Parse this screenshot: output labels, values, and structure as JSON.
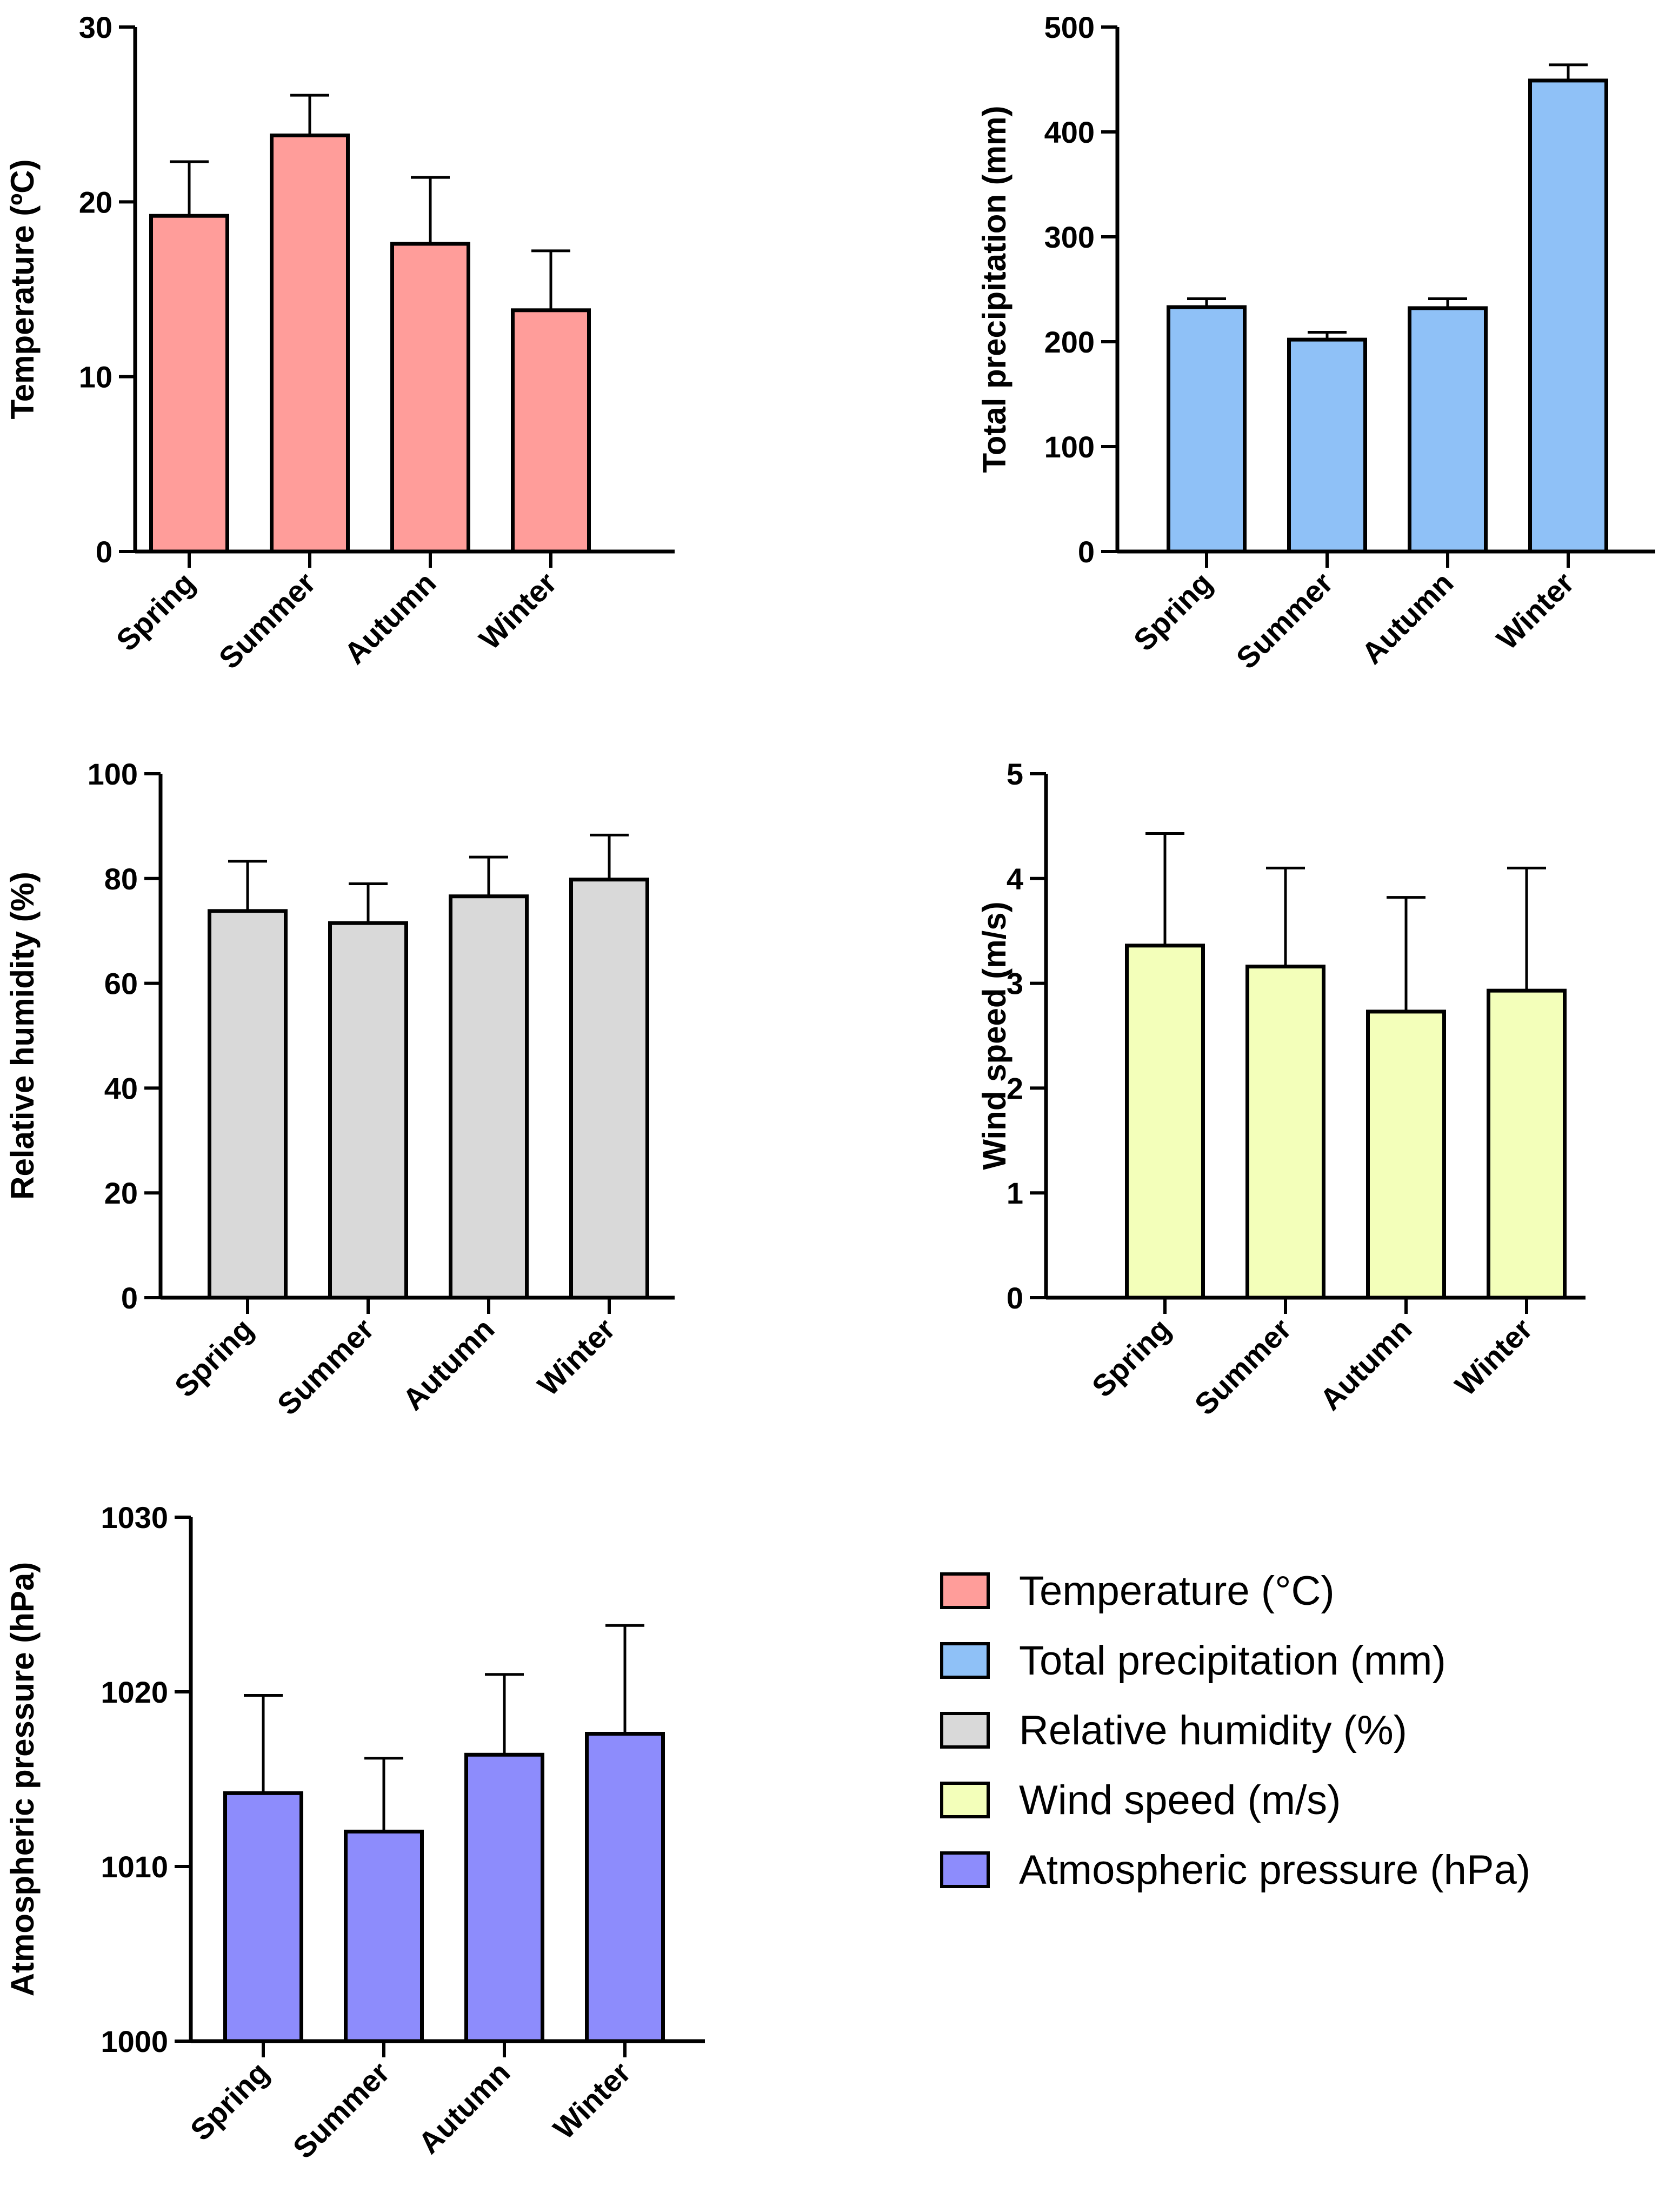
{
  "categories": [
    "Spring",
    "Summer",
    "Autumn",
    "Winter"
  ],
  "chart_data": [
    {
      "type": "bar",
      "id": "temperature",
      "ylabel": "Temperature (ºC)",
      "color": "#FF9D9A",
      "ylim": [
        0,
        30
      ],
      "yticks": [
        "0",
        "10",
        "20",
        "30"
      ],
      "categories": [
        "Spring",
        "Summer",
        "Autumn",
        "Winter"
      ],
      "values": [
        19.2,
        23.8,
        17.6,
        13.8
      ],
      "errors": [
        3.1,
        2.3,
        3.8,
        3.4
      ]
    },
    {
      "type": "bar",
      "id": "precipitation",
      "ylabel": "Total precipitation (mm)",
      "color": "#8FC1F7",
      "ylim": [
        0,
        500
      ],
      "yticks": [
        "0",
        "100",
        "200",
        "300",
        "400",
        "500"
      ],
      "categories": [
        "Spring",
        "Summer",
        "Autumn",
        "Winter"
      ],
      "values": [
        233,
        202,
        232,
        449
      ],
      "errors": [
        8,
        7,
        9,
        15
      ]
    },
    {
      "type": "bar",
      "id": "humidity",
      "ylabel": "Relative humidity (%)",
      "color": "#D9D9D9",
      "ylim": [
        0,
        100
      ],
      "yticks": [
        "0",
        "20",
        "40",
        "60",
        "80",
        "100"
      ],
      "categories": [
        "Spring",
        "Summer",
        "Autumn",
        "Winter"
      ],
      "values": [
        73.8,
        71.5,
        76.6,
        79.8
      ],
      "errors": [
        9.5,
        7.5,
        7.5,
        8.5
      ]
    },
    {
      "type": "bar",
      "id": "wind",
      "ylabel": "Wind speed (m/s)",
      "color": "#F3FFBA",
      "ylim": [
        0,
        5
      ],
      "yticks": [
        "0",
        "1",
        "2",
        "3",
        "4",
        "5"
      ],
      "categories": [
        "Spring",
        "Summer",
        "Autumn",
        "Winter"
      ],
      "values": [
        3.36,
        3.16,
        2.73,
        2.93
      ],
      "errors": [
        1.07,
        0.94,
        1.09,
        1.17
      ]
    },
    {
      "type": "bar",
      "id": "pressure",
      "ylabel": "Atmospheric pressure (hPa)",
      "color": "#8D8CFC",
      "ylim": [
        1000,
        1030
      ],
      "yticks": [
        "1000",
        "1010",
        "1020",
        "1030"
      ],
      "categories": [
        "Spring",
        "Summer",
        "Autumn",
        "Winter"
      ],
      "values": [
        1014.2,
        1012.0,
        1016.4,
        1017.6
      ],
      "errors": [
        5.6,
        4.2,
        4.6,
        6.2
      ]
    }
  ],
  "legend": [
    {
      "label": "Temperature (°C)",
      "color": "#FF9D9A"
    },
    {
      "label": "Total precipitation (mm)",
      "color": "#8FC1F7"
    },
    {
      "label": "Relative humidity (%)",
      "color": "#D9D9D9"
    },
    {
      "label": "Wind speed (m/s)",
      "color": "#F3FFBA"
    },
    {
      "label": "Atmospheric pressure (hPa)",
      "color": "#8D8CFC"
    }
  ]
}
